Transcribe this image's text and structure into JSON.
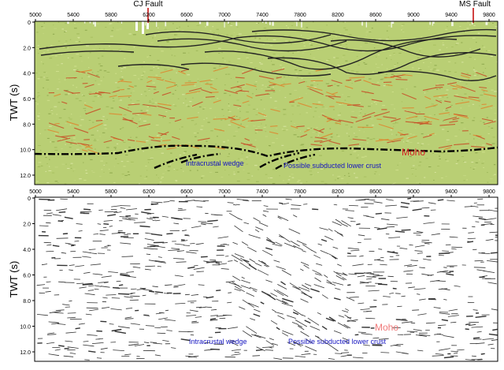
{
  "header": {
    "fault_left": "CJ Fault",
    "fault_right": "MS Fault"
  },
  "axes": {
    "x_ticks": [
      "5000",
      "5400",
      "5800",
      "6200",
      "6600",
      "7000",
      "7400",
      "7800",
      "8200",
      "8600",
      "9000",
      "9400",
      "9800"
    ],
    "y_ticks": [
      "0",
      "2.0",
      "4.0",
      "6.0",
      "8.0",
      "10.0",
      "12.0"
    ],
    "y_label": "TWT (s)"
  },
  "top_panel": {
    "moho_label": "Moho",
    "wedge_label": "Intracrustal wedge",
    "crust_label": "Possible subducted lower crust"
  },
  "bottom_panel": {
    "moho_label": "Moho",
    "wedge_label": "Intracrustal wedge",
    "crust_label": "Possible subducted lower crust"
  },
  "colors": {
    "seismic_green": "#b9cf74",
    "seismic_red": "#c84a24",
    "reflector_dark": "#2a2a2a",
    "moho_red": "#d42020",
    "label_blue": "#1515c0",
    "fault_red": "#c00000"
  }
}
